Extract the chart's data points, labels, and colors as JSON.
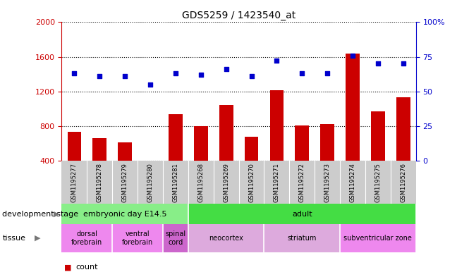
{
  "title": "GDS5259 / 1423540_at",
  "samples": [
    "GSM1195277",
    "GSM1195278",
    "GSM1195279",
    "GSM1195280",
    "GSM1195281",
    "GSM1195268",
    "GSM1195269",
    "GSM1195270",
    "GSM1195271",
    "GSM1195272",
    "GSM1195273",
    "GSM1195274",
    "GSM1195275",
    "GSM1195276"
  ],
  "counts": [
    730,
    660,
    610,
    360,
    940,
    800,
    1040,
    680,
    1210,
    810,
    820,
    1640,
    970,
    1130
  ],
  "percentiles": [
    63,
    61,
    61,
    55,
    63,
    62,
    66,
    61,
    72,
    63,
    63,
    76,
    70,
    70
  ],
  "ylim_left": [
    400,
    2000
  ],
  "ylim_right": [
    0,
    100
  ],
  "yticks_left": [
    400,
    800,
    1200,
    1600,
    2000
  ],
  "yticks_right": [
    0,
    25,
    50,
    75,
    100
  ],
  "bar_color": "#cc0000",
  "scatter_color": "#0000cc",
  "dev_stage_groups": [
    {
      "label": "embryonic day E14.5",
      "start": 0,
      "end": 4,
      "color": "#88ee88"
    },
    {
      "label": "adult",
      "start": 5,
      "end": 13,
      "color": "#44dd44"
    }
  ],
  "tissue_groups": [
    {
      "label": "dorsal\nforebrain",
      "start": 0,
      "end": 1,
      "color": "#ee88ee"
    },
    {
      "label": "ventral\nforebrain",
      "start": 2,
      "end": 3,
      "color": "#ee88ee"
    },
    {
      "label": "spinal\ncord",
      "start": 4,
      "end": 4,
      "color": "#cc66cc"
    },
    {
      "label": "neocortex",
      "start": 5,
      "end": 7,
      "color": "#ddaadd"
    },
    {
      "label": "striatum",
      "start": 8,
      "end": 10,
      "color": "#ddaadd"
    },
    {
      "label": "subventricular zone",
      "start": 11,
      "end": 13,
      "color": "#ee88ee"
    }
  ],
  "dev_stage_label": "development stage",
  "tissue_label": "tissue"
}
